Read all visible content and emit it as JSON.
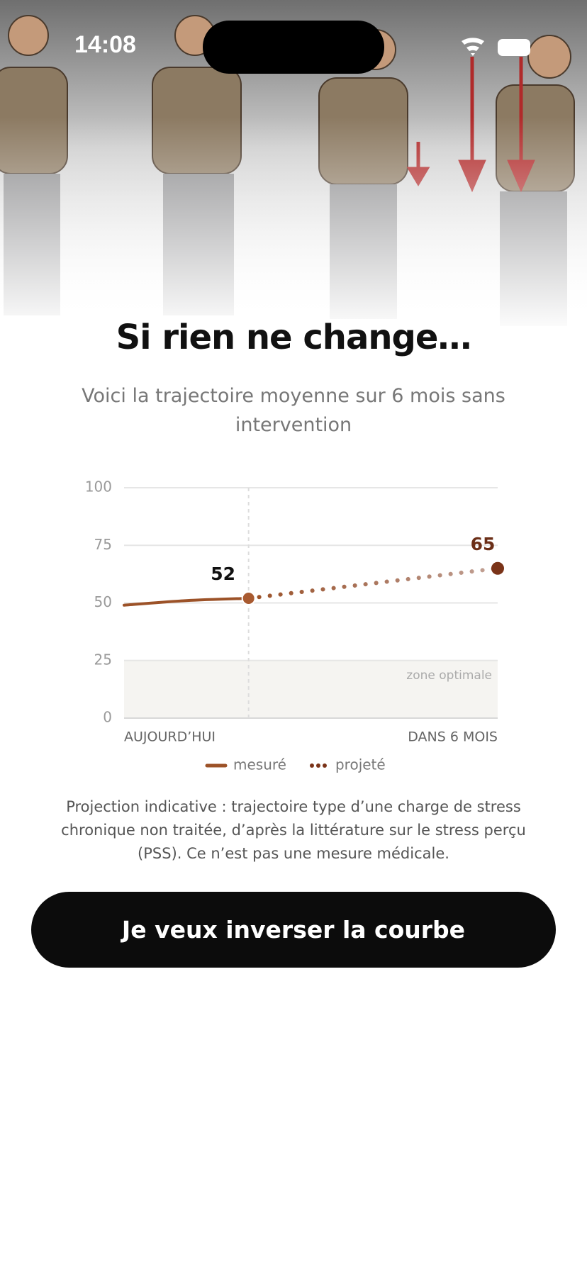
{
  "status_bar": {
    "time": "14:08"
  },
  "header": {
    "title": "Si rien ne change…",
    "subtitle": "Voici la trajectoire moyenne sur 6 mois sans intervention"
  },
  "chart_data": {
    "type": "line",
    "xlim": [
      0,
      6
    ],
    "xticks": [
      {
        "value": 0,
        "label": "AUJOURD’HUI"
      },
      {
        "value": 6,
        "label": "DANS 6 MOIS"
      }
    ],
    "ylim": [
      0,
      100
    ],
    "yticks": [
      0,
      25,
      50,
      75,
      100
    ],
    "grid": true,
    "series": [
      {
        "name": "mesuré",
        "color": "#9c5228",
        "style": "solid",
        "x": [
          0,
          1,
          2
        ],
        "values": [
          49,
          51,
          52
        ]
      },
      {
        "name": "projeté",
        "color": "#7a3318",
        "style": "dotted",
        "x": [
          2,
          6
        ],
        "values": [
          52,
          65
        ]
      }
    ],
    "zone": {
      "label": "zone optimale",
      "ylim": [
        0,
        25
      ]
    },
    "legend": "bottom"
  },
  "disclaimer": "Projection indicative : trajectoire type d’une charge de stress chronique non traitée, d’après la littérature sur le stress perçu (PSS). Ce n’est pas une mesure médicale.",
  "button": {
    "label": "Je veux inverser la courbe"
  }
}
